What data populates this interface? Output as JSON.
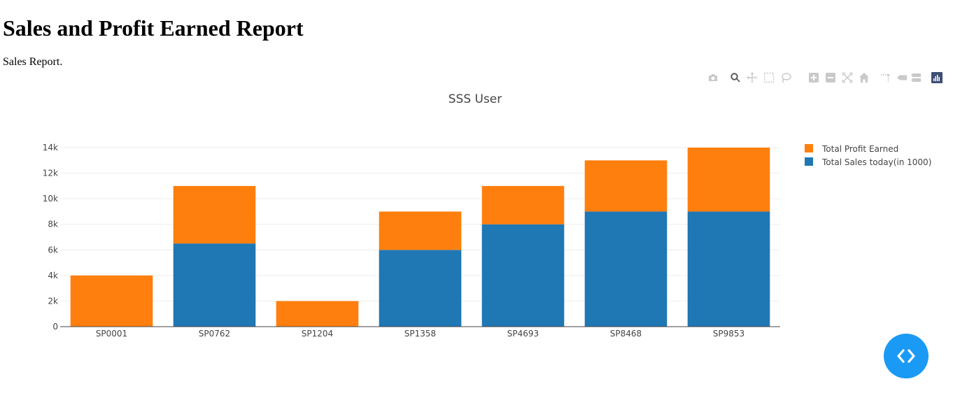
{
  "page": {
    "title": "Sales and Profit Earned Report",
    "description": "Sales Report."
  },
  "modebar": {
    "buttons": [
      {
        "name": "camera-icon",
        "active": false
      },
      {
        "name": "zoom-icon",
        "active": true
      },
      {
        "name": "pan-icon",
        "active": false
      },
      {
        "name": "box-select-icon",
        "active": false
      },
      {
        "name": "lasso-select-icon",
        "active": false
      },
      {
        "name": "zoom-in-icon",
        "active": false
      },
      {
        "name": "zoom-out-icon",
        "active": false
      },
      {
        "name": "autoscale-icon",
        "active": false
      },
      {
        "name": "reset-axes-icon",
        "active": false
      },
      {
        "name": "spike-lines-icon",
        "active": false
      },
      {
        "name": "hover-closest-icon",
        "active": false
      },
      {
        "name": "hover-compare-icon",
        "active": false
      },
      {
        "name": "plotly-logo-icon",
        "active": false
      }
    ]
  },
  "colors": {
    "profit": "#ff7f0e",
    "sales": "#1f77b4",
    "fab": "#1a9af5",
    "icon_inactive": "#c9c9c9",
    "icon_active": "#5a5a5a",
    "logo": "#3f4f75"
  },
  "chart_data": {
    "type": "bar",
    "barmode": "stack",
    "title": "SSS User",
    "xlabel": "",
    "ylabel": "",
    "categories": [
      "SP0001",
      "SP0762",
      "SP1204",
      "SP1358",
      "SP4693",
      "SP8468",
      "SP9853"
    ],
    "series": [
      {
        "name": "Total Sales today(in 1000)",
        "color": "#1f77b4",
        "values": [
          0,
          6500,
          0,
          6000,
          8000,
          9000,
          9000
        ]
      },
      {
        "name": "Total Profit Earned",
        "color": "#ff7f0e",
        "values": [
          4000,
          4500,
          2000,
          3000,
          3000,
          4000,
          5000
        ]
      }
    ],
    "legend_order": [
      "Total Profit Earned",
      "Total Sales today(in 1000)"
    ],
    "ylim": [
      0,
      14000
    ],
    "yticks": [
      0,
      2000,
      4000,
      6000,
      8000,
      10000,
      12000,
      14000
    ],
    "ytick_labels": [
      "0",
      "2k",
      "4k",
      "6k",
      "8k",
      "10k",
      "12k",
      "14k"
    ],
    "grid": true,
    "legend_position": "right"
  }
}
